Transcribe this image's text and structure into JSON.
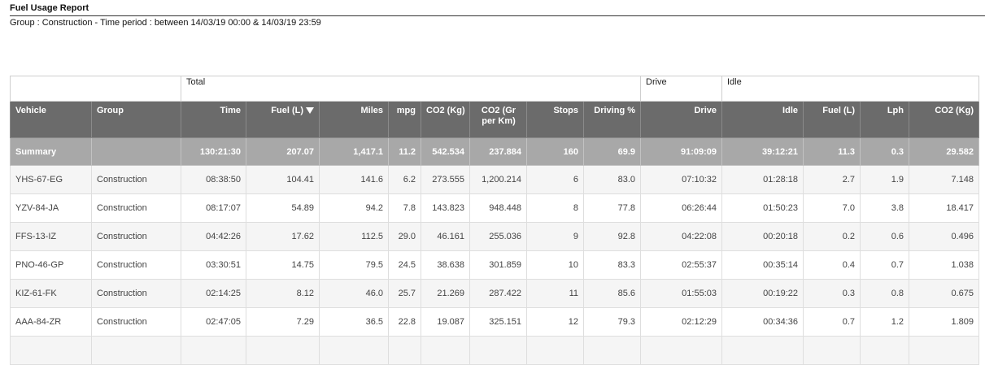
{
  "report": {
    "title": "Fuel Usage Report",
    "subtitle": "Group : Construction - Time period : between 14/03/19 00:00 & 14/03/19 23:59"
  },
  "group_headers": {
    "total": "Total",
    "drive": "Drive",
    "idle": "Idle"
  },
  "columns": [
    "Vehicle",
    "Group",
    "Time",
    "Fuel (L)",
    "Miles",
    "mpg",
    "CO2 (Kg)",
    "CO2 (Gr per Km)",
    "Stops",
    "Driving %",
    "Drive",
    "Idle",
    "Fuel (L)",
    "Lph",
    "CO2 (Kg)"
  ],
  "sorted_column": "Fuel (L)",
  "summary": [
    "Summary",
    "",
    "130:21:30",
    "207.07",
    "1,417.1",
    "11.2",
    "542.534",
    "237.884",
    "160",
    "69.9",
    "91:09:09",
    "39:12:21",
    "11.3",
    "0.3",
    "29.582"
  ],
  "rows": [
    [
      "YHS-67-EG",
      "Construction",
      "08:38:50",
      "104.41",
      "141.6",
      "6.2",
      "273.555",
      "1,200.214",
      "6",
      "83.0",
      "07:10:32",
      "01:28:18",
      "2.7",
      "1.9",
      "7.148"
    ],
    [
      "YZV-84-JA",
      "Construction",
      "08:17:07",
      "54.89",
      "94.2",
      "7.8",
      "143.823",
      "948.448",
      "8",
      "77.8",
      "06:26:44",
      "01:50:23",
      "7.0",
      "3.8",
      "18.417"
    ],
    [
      "FFS-13-IZ",
      "Construction",
      "04:42:26",
      "17.62",
      "112.5",
      "29.0",
      "46.161",
      "255.036",
      "9",
      "92.8",
      "04:22:08",
      "00:20:18",
      "0.2",
      "0.6",
      "0.496"
    ],
    [
      "PNO-46-GP",
      "Construction",
      "03:30:51",
      "14.75",
      "79.5",
      "24.5",
      "38.638",
      "301.859",
      "10",
      "83.3",
      "02:55:37",
      "00:35:14",
      "0.4",
      "0.7",
      "1.038"
    ],
    [
      "KIZ-61-FK",
      "Construction",
      "02:14:25",
      "8.12",
      "46.0",
      "25.7",
      "21.269",
      "287.422",
      "11",
      "85.6",
      "01:55:03",
      "00:19:22",
      "0.3",
      "0.8",
      "0.675"
    ],
    [
      "AAA-84-ZR",
      "Construction",
      "02:47:05",
      "7.29",
      "36.5",
      "22.8",
      "19.087",
      "325.151",
      "12",
      "79.3",
      "02:12:29",
      "00:34:36",
      "0.7",
      "1.2",
      "1.809"
    ],
    [
      "",
      "",
      "",
      "",
      "",
      "",
      "",
      "",
      "",
      "",
      "",
      "",
      "",
      "",
      ""
    ]
  ]
}
